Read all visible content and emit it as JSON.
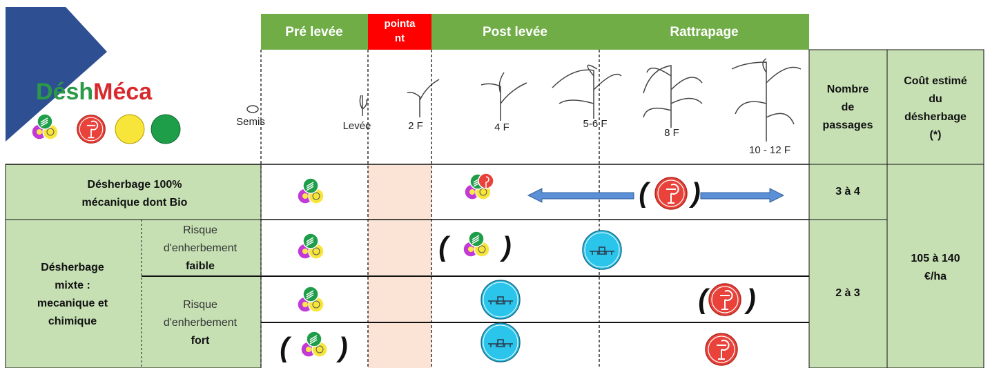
{
  "logo": {
    "part1": "Désh",
    "part2": "Méca"
  },
  "header": {
    "pre_levee": "Pré levée",
    "pointant": [
      "pointa",
      "nt"
    ],
    "post_levee": "Post levée",
    "rattrapage": "Rattrapage",
    "passages": [
      "Nombre",
      "de",
      "passages"
    ],
    "cost": [
      "Coût estimé",
      "du",
      "désherbage",
      "(*)"
    ]
  },
  "stages": [
    "Semis",
    "Levée",
    "2 F",
    "4 F",
    "5-6 F",
    "8 F",
    "10 - 12 F"
  ],
  "rows": [
    {
      "label": [
        "Désherbage 100%",
        "mécanique dont Bio"
      ],
      "passages": "3 à 4"
    },
    {
      "label": [
        "Désherbage",
        "mixte :",
        "mecanique et",
        "chimique"
      ],
      "passages": "2 à 3",
      "sub": [
        {
          "risk": [
            "Risque",
            "d'enherbement"
          ],
          "level": "faible"
        },
        {
          "risk": [
            "Risque",
            "d'enherbement"
          ],
          "level": "fort"
        }
      ]
    }
  ],
  "cost": [
    "105 à 140",
    "€/ha"
  ],
  "brackets": {
    "open": "(",
    "close": ")"
  }
}
